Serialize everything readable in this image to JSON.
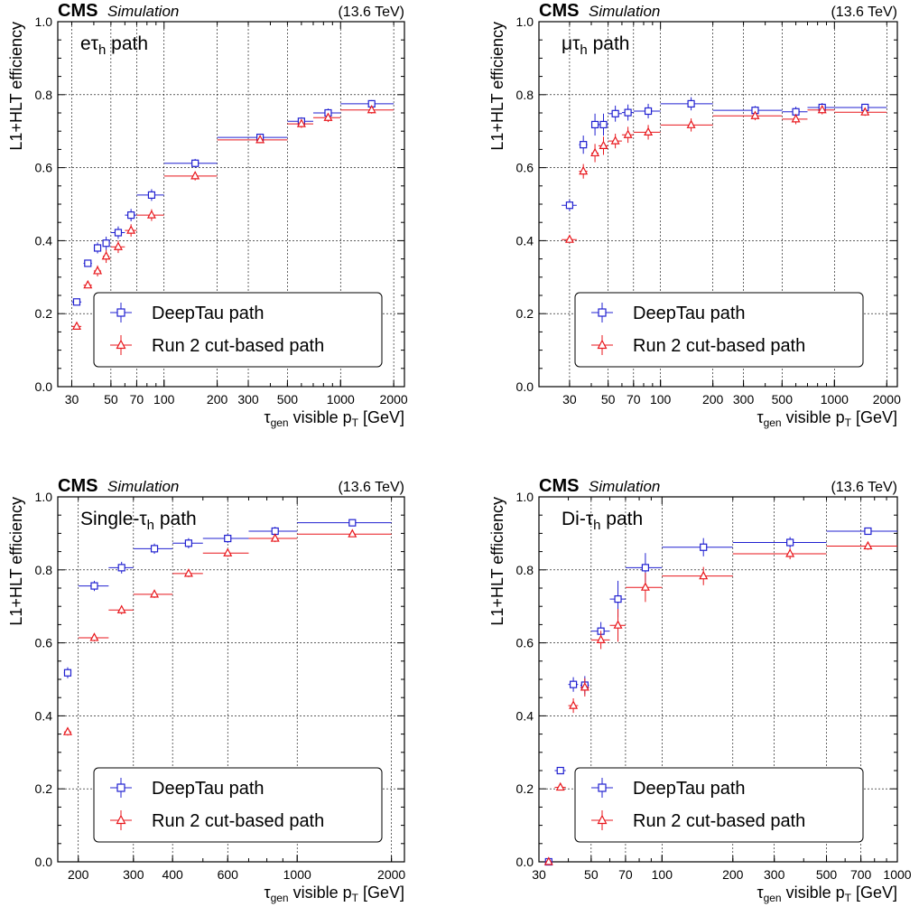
{
  "colors": {
    "deeptau": "#2020d0",
    "run2": "#e8161b",
    "grid": "#000000",
    "axes": "#000000"
  },
  "chart_data": [
    {
      "type": "scatter",
      "title": "eτh path",
      "title_parts": {
        "base": "eτ",
        "sub": "h",
        "tail": " path"
      },
      "cms_label": "CMS",
      "sim_label": "Simulation",
      "energy_label": "(13.6 TeV)",
      "xlabel": "τgen visible pT [GeV]",
      "ylabel": "L1+HLT efficiency",
      "xscale": "log",
      "xlim": [
        25,
        2300
      ],
      "ylim": [
        0,
        1.0
      ],
      "xticks": [
        30,
        50,
        70,
        100,
        200,
        300,
        500,
        1000,
        2000
      ],
      "xticklabels": [
        "30",
        "50",
        "70",
        "100",
        "200",
        "300",
        "500",
        "1000",
        "2000"
      ],
      "yticks": [
        0.0,
        0.2,
        0.4,
        0.6,
        0.8,
        1.0
      ],
      "yticklabels": [
        "0.0",
        "0.2",
        "0.4",
        "0.6",
        "0.8",
        "1.0"
      ],
      "grid": true,
      "legend_position": "bottom-right",
      "series": [
        {
          "name": "DeepTau path",
          "marker": "square",
          "color": "#2020d0",
          "points": [
            {
              "x": 32,
              "xlo": 30,
              "xhi": 34,
              "y": 0.232,
              "err": 0.006
            },
            {
              "x": 37,
              "xlo": 35,
              "xhi": 39,
              "y": 0.338,
              "err": 0.007
            },
            {
              "x": 42,
              "xlo": 40,
              "xhi": 44,
              "y": 0.38,
              "err": 0.015
            },
            {
              "x": 47,
              "xlo": 45,
              "xhi": 49,
              "y": 0.393,
              "err": 0.018
            },
            {
              "x": 55,
              "xlo": 50,
              "xhi": 60,
              "y": 0.422,
              "err": 0.017
            },
            {
              "x": 65,
              "xlo": 60,
              "xhi": 70,
              "y": 0.47,
              "err": 0.017
            },
            {
              "x": 85,
              "xlo": 70,
              "xhi": 100,
              "y": 0.525,
              "err": 0.016
            },
            {
              "x": 150,
              "xlo": 100,
              "xhi": 200,
              "y": 0.612,
              "err": 0.012
            },
            {
              "x": 350,
              "xlo": 200,
              "xhi": 500,
              "y": 0.683,
              "err": 0.009
            },
            {
              "x": 600,
              "xlo": 500,
              "xhi": 700,
              "y": 0.727,
              "err": 0.011
            },
            {
              "x": 850,
              "xlo": 700,
              "xhi": 1000,
              "y": 0.75,
              "err": 0.012
            },
            {
              "x": 1500,
              "xlo": 1000,
              "xhi": 2000,
              "y": 0.775,
              "err": 0.01
            }
          ]
        },
        {
          "name": "Run 2 cut-based path",
          "marker": "triangle",
          "color": "#e8161b",
          "points": [
            {
              "x": 32,
              "xlo": 30,
              "xhi": 34,
              "y": 0.165,
              "err": 0.006
            },
            {
              "x": 37,
              "xlo": 35,
              "xhi": 39,
              "y": 0.278,
              "err": 0.007
            },
            {
              "x": 42,
              "xlo": 40,
              "xhi": 44,
              "y": 0.317,
              "err": 0.015
            },
            {
              "x": 47,
              "xlo": 45,
              "xhi": 49,
              "y": 0.357,
              "err": 0.018
            },
            {
              "x": 55,
              "xlo": 50,
              "xhi": 60,
              "y": 0.383,
              "err": 0.017
            },
            {
              "x": 65,
              "xlo": 60,
              "xhi": 70,
              "y": 0.428,
              "err": 0.017
            },
            {
              "x": 85,
              "xlo": 70,
              "xhi": 100,
              "y": 0.47,
              "err": 0.016
            },
            {
              "x": 150,
              "xlo": 100,
              "xhi": 200,
              "y": 0.577,
              "err": 0.012
            },
            {
              "x": 350,
              "xlo": 200,
              "xhi": 500,
              "y": 0.676,
              "err": 0.009
            },
            {
              "x": 600,
              "xlo": 500,
              "xhi": 700,
              "y": 0.72,
              "err": 0.011
            },
            {
              "x": 850,
              "xlo": 700,
              "xhi": 1000,
              "y": 0.737,
              "err": 0.012
            },
            {
              "x": 1500,
              "xlo": 1000,
              "xhi": 2000,
              "y": 0.758,
              "err": 0.01
            }
          ]
        }
      ]
    },
    {
      "type": "scatter",
      "title": "μτh path",
      "title_parts": {
        "base": "μτ",
        "sub": "h",
        "tail": " path"
      },
      "cms_label": "CMS",
      "sim_label": "Simulation",
      "energy_label": "(13.6 TeV)",
      "xlabel": "τgen visible pT [GeV]",
      "ylabel": "L1+HLT efficiency",
      "xscale": "log",
      "xlim": [
        20,
        2300
      ],
      "ylim": [
        0,
        1.0
      ],
      "xticks": [
        30,
        50,
        70,
        100,
        200,
        300,
        500,
        1000,
        2000
      ],
      "xticklabels": [
        "30",
        "50",
        "70",
        "100",
        "200",
        "300",
        "500",
        "1000",
        "2000"
      ],
      "yticks": [
        0.0,
        0.2,
        0.4,
        0.6,
        0.8,
        1.0
      ],
      "yticklabels": [
        "0.0",
        "0.2",
        "0.4",
        "0.6",
        "0.8",
        "1.0"
      ],
      "grid": true,
      "legend_position": "bottom-right",
      "series": [
        {
          "name": "DeepTau path",
          "marker": "square",
          "color": "#2020d0",
          "points": [
            {
              "x": 30,
              "xlo": 27,
              "xhi": 33,
              "y": 0.497,
              "err": 0.016
            },
            {
              "x": 36,
              "xlo": 34,
              "xhi": 38,
              "y": 0.663,
              "err": 0.025
            },
            {
              "x": 42,
              "xlo": 40,
              "xhi": 44,
              "y": 0.718,
              "err": 0.03
            },
            {
              "x": 47,
              "xlo": 44,
              "xhi": 50,
              "y": 0.718,
              "err": 0.03
            },
            {
              "x": 55,
              "xlo": 50,
              "xhi": 60,
              "y": 0.748,
              "err": 0.022
            },
            {
              "x": 65,
              "xlo": 60,
              "xhi": 70,
              "y": 0.751,
              "err": 0.022
            },
            {
              "x": 85,
              "xlo": 70,
              "xhi": 100,
              "y": 0.755,
              "err": 0.02
            },
            {
              "x": 150,
              "xlo": 100,
              "xhi": 200,
              "y": 0.775,
              "err": 0.018
            },
            {
              "x": 350,
              "xlo": 200,
              "xhi": 500,
              "y": 0.757,
              "err": 0.012
            },
            {
              "x": 600,
              "xlo": 500,
              "xhi": 700,
              "y": 0.753,
              "err": 0.014
            },
            {
              "x": 850,
              "xlo": 700,
              "xhi": 1000,
              "y": 0.765,
              "err": 0.012
            },
            {
              "x": 1500,
              "xlo": 1000,
              "xhi": 2000,
              "y": 0.765,
              "err": 0.01
            }
          ]
        },
        {
          "name": "Run 2 cut-based path",
          "marker": "triangle",
          "color": "#e8161b",
          "points": [
            {
              "x": 30,
              "xlo": 27,
              "xhi": 33,
              "y": 0.403,
              "err": 0.008
            },
            {
              "x": 36,
              "xlo": 34,
              "xhi": 38,
              "y": 0.59,
              "err": 0.02
            },
            {
              "x": 42,
              "xlo": 40,
              "xhi": 44,
              "y": 0.64,
              "err": 0.025
            },
            {
              "x": 47,
              "xlo": 44,
              "xhi": 50,
              "y": 0.66,
              "err": 0.025
            },
            {
              "x": 55,
              "xlo": 50,
              "xhi": 60,
              "y": 0.673,
              "err": 0.02
            },
            {
              "x": 65,
              "xlo": 60,
              "xhi": 70,
              "y": 0.69,
              "err": 0.022
            },
            {
              "x": 85,
              "xlo": 70,
              "xhi": 100,
              "y": 0.697,
              "err": 0.02
            },
            {
              "x": 150,
              "xlo": 100,
              "xhi": 200,
              "y": 0.717,
              "err": 0.018
            },
            {
              "x": 350,
              "xlo": 200,
              "xhi": 500,
              "y": 0.742,
              "err": 0.012
            },
            {
              "x": 600,
              "xlo": 500,
              "xhi": 700,
              "y": 0.733,
              "err": 0.014
            },
            {
              "x": 850,
              "xlo": 700,
              "xhi": 1000,
              "y": 0.758,
              "err": 0.012
            },
            {
              "x": 1500,
              "xlo": 1000,
              "xhi": 2000,
              "y": 0.752,
              "err": 0.01
            }
          ]
        }
      ]
    },
    {
      "type": "scatter",
      "title": "Single-τh path",
      "title_parts": {
        "base": "Single-τ",
        "sub": "h",
        "tail": " path"
      },
      "cms_label": "CMS",
      "sim_label": "Simulation",
      "energy_label": "(13.6 TeV)",
      "xlabel": "τgen visible pT [GeV]",
      "ylabel": "L1+HLT efficiency",
      "xscale": "log",
      "xlim": [
        172,
        2200
      ],
      "ylim": [
        0,
        1.0
      ],
      "xticks": [
        200,
        300,
        400,
        600,
        1000,
        2000
      ],
      "xticklabels": [
        "200",
        "300",
        "400",
        "600",
        "1000",
        "2000"
      ],
      "yticks": [
        0.0,
        0.2,
        0.4,
        0.6,
        0.8,
        1.0
      ],
      "yticklabels": [
        "0.0",
        "0.2",
        "0.4",
        "0.6",
        "0.8",
        "1.0"
      ],
      "grid": true,
      "legend_position": "bottom-right",
      "series": [
        {
          "name": "DeepTau path",
          "marker": "square",
          "color": "#2020d0",
          "points": [
            {
              "x": 185,
              "xlo": 180,
              "xhi": 190,
              "y": 0.518,
              "err": 0.015
            },
            {
              "x": 225,
              "xlo": 200,
              "xhi": 250,
              "y": 0.756,
              "err": 0.014
            },
            {
              "x": 275,
              "xlo": 250,
              "xhi": 300,
              "y": 0.806,
              "err": 0.016
            },
            {
              "x": 350,
              "xlo": 300,
              "xhi": 400,
              "y": 0.858,
              "err": 0.014
            },
            {
              "x": 450,
              "xlo": 400,
              "xhi": 500,
              "y": 0.873,
              "err": 0.014
            },
            {
              "x": 600,
              "xlo": 500,
              "xhi": 700,
              "y": 0.886,
              "err": 0.012
            },
            {
              "x": 850,
              "xlo": 700,
              "xhi": 1000,
              "y": 0.906,
              "err": 0.012
            },
            {
              "x": 1500,
              "xlo": 1000,
              "xhi": 2000,
              "y": 0.929,
              "err": 0.008
            }
          ]
        },
        {
          "name": "Run 2 cut-based path",
          "marker": "triangle",
          "color": "#e8161b",
          "points": [
            {
              "x": 185,
              "xlo": 180,
              "xhi": 190,
              "y": 0.356,
              "err": 0.01
            },
            {
              "x": 225,
              "xlo": 200,
              "xhi": 250,
              "y": 0.614,
              "err": 0.01
            },
            {
              "x": 275,
              "xlo": 250,
              "xhi": 300,
              "y": 0.69,
              "err": 0.012
            },
            {
              "x": 350,
              "xlo": 300,
              "xhi": 400,
              "y": 0.733,
              "err": 0.01
            },
            {
              "x": 450,
              "xlo": 400,
              "xhi": 500,
              "y": 0.79,
              "err": 0.01
            },
            {
              "x": 600,
              "xlo": 500,
              "xhi": 700,
              "y": 0.846,
              "err": 0.01
            },
            {
              "x": 850,
              "xlo": 700,
              "xhi": 1000,
              "y": 0.886,
              "err": 0.01
            },
            {
              "x": 1500,
              "xlo": 1000,
              "xhi": 2000,
              "y": 0.898,
              "err": 0.008
            }
          ]
        }
      ]
    },
    {
      "type": "scatter",
      "title": "Di-τh path",
      "title_parts": {
        "base": "Di-τ",
        "sub": "h",
        "tail": " path"
      },
      "cms_label": "CMS",
      "sim_label": "Simulation",
      "energy_label": "(13.6 TeV)",
      "xlabel": "τgen visible pT [GeV]",
      "ylabel": "L1+HLT efficiency",
      "xscale": "log",
      "xlim": [
        30,
        1000
      ],
      "ylim": [
        0,
        1.0
      ],
      "xticks": [
        30,
        50,
        70,
        100,
        200,
        300,
        500,
        700,
        1000
      ],
      "xticklabels": [
        "30",
        "50",
        "70",
        "100",
        "200",
        "300",
        "500",
        "700",
        "1000"
      ],
      "yticks": [
        0.0,
        0.2,
        0.4,
        0.6,
        0.8,
        1.0
      ],
      "yticklabels": [
        "0.0",
        "0.2",
        "0.4",
        "0.6",
        "0.8",
        "1.0"
      ],
      "grid": true,
      "legend_position": "bottom-right",
      "series": [
        {
          "name": "DeepTau path",
          "marker": "square",
          "color": "#2020d0",
          "points": [
            {
              "x": 33,
              "xlo": 32,
              "xhi": 34,
              "y": 0.0,
              "err": 0.0
            },
            {
              "x": 37,
              "xlo": 35,
              "xhi": 39,
              "y": 0.25,
              "err": 0.005
            },
            {
              "x": 42,
              "xlo": 40,
              "xhi": 44,
              "y": 0.486,
              "err": 0.02
            },
            {
              "x": 47,
              "xlo": 45,
              "xhi": 49,
              "y": 0.484,
              "err": 0.025
            },
            {
              "x": 55,
              "xlo": 50,
              "xhi": 60,
              "y": 0.632,
              "err": 0.025
            },
            {
              "x": 65,
              "xlo": 60,
              "xhi": 70,
              "y": 0.72,
              "err": 0.05
            },
            {
              "x": 85,
              "xlo": 70,
              "xhi": 100,
              "y": 0.806,
              "err": 0.04
            },
            {
              "x": 150,
              "xlo": 100,
              "xhi": 200,
              "y": 0.862,
              "err": 0.025
            },
            {
              "x": 350,
              "xlo": 200,
              "xhi": 500,
              "y": 0.875,
              "err": 0.015
            },
            {
              "x": 750,
              "xlo": 500,
              "xhi": 1000,
              "y": 0.906,
              "err": 0.01
            }
          ]
        },
        {
          "name": "Run 2 cut-based path",
          "marker": "triangle",
          "color": "#e8161b",
          "points": [
            {
              "x": 33,
              "xlo": 32,
              "xhi": 34,
              "y": 0.0,
              "err": 0.0
            },
            {
              "x": 37,
              "xlo": 35,
              "xhi": 39,
              "y": 0.204,
              "err": 0.005
            },
            {
              "x": 42,
              "xlo": 40,
              "xhi": 44,
              "y": 0.428,
              "err": 0.02
            },
            {
              "x": 47,
              "xlo": 45,
              "xhi": 49,
              "y": 0.478,
              "err": 0.025
            },
            {
              "x": 55,
              "xlo": 50,
              "xhi": 60,
              "y": 0.608,
              "err": 0.025
            },
            {
              "x": 65,
              "xlo": 60,
              "xhi": 70,
              "y": 0.648,
              "err": 0.045
            },
            {
              "x": 85,
              "xlo": 70,
              "xhi": 100,
              "y": 0.752,
              "err": 0.04
            },
            {
              "x": 150,
              "xlo": 100,
              "xhi": 200,
              "y": 0.783,
              "err": 0.025
            },
            {
              "x": 350,
              "xlo": 200,
              "xhi": 500,
              "y": 0.844,
              "err": 0.015
            },
            {
              "x": 750,
              "xlo": 500,
              "xhi": 1000,
              "y": 0.865,
              "err": 0.01
            }
          ]
        }
      ]
    }
  ]
}
